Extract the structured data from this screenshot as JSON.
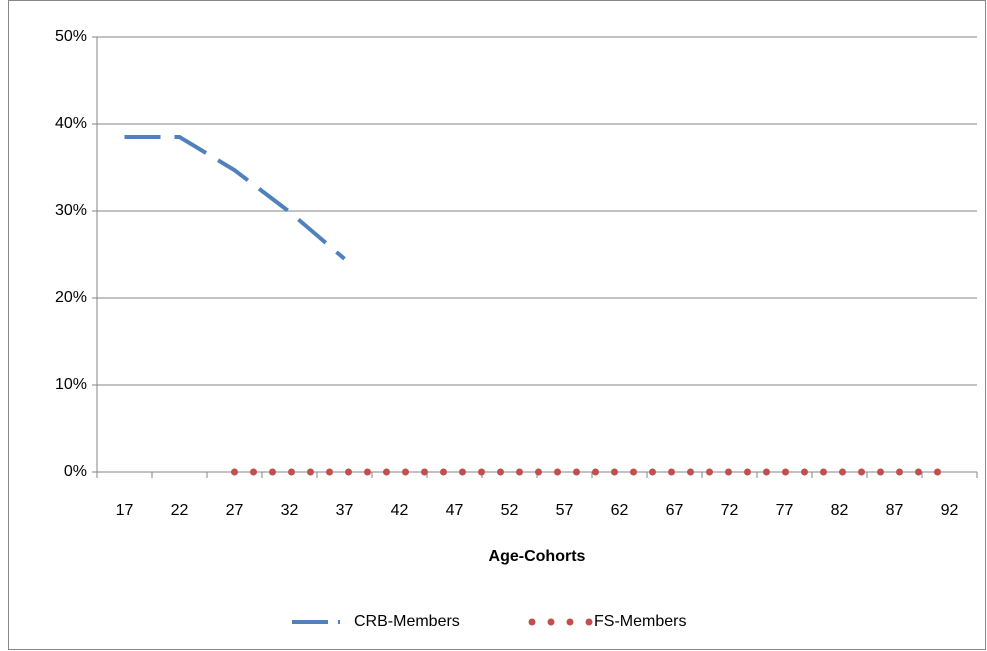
{
  "chart_data": {
    "type": "line",
    "x_label": "Age-Cohorts",
    "categories": [
      "17",
      "22",
      "27",
      "32",
      "37",
      "42",
      "47",
      "52",
      "57",
      "62",
      "67",
      "72",
      "77",
      "82",
      "87",
      "92"
    ],
    "series": [
      {
        "name": "CRB-Members",
        "color": "#4f81bd",
        "style": "dash",
        "values": [
          38.5,
          38.5,
          34.7,
          29.9,
          24.5,
          null,
          null,
          null,
          null,
          null,
          null,
          null,
          null,
          null,
          null,
          null
        ]
      },
      {
        "name": "FS-Members",
        "color": "#c0504d",
        "style": "dot",
        "values": [
          null,
          null,
          0,
          0,
          0,
          0,
          0,
          0,
          0,
          0,
          0,
          0,
          0,
          0,
          0,
          0
        ]
      }
    ],
    "ylim": [
      0,
      50
    ],
    "yticks": [
      {
        "value": 0,
        "label": "0%"
      },
      {
        "value": 10,
        "label": "10%"
      },
      {
        "value": 20,
        "label": "20%"
      },
      {
        "value": 30,
        "label": "30%"
      },
      {
        "value": 40,
        "label": "40%"
      },
      {
        "value": 50,
        "label": "50%"
      }
    ],
    "grid": true,
    "legend": "bottom"
  }
}
